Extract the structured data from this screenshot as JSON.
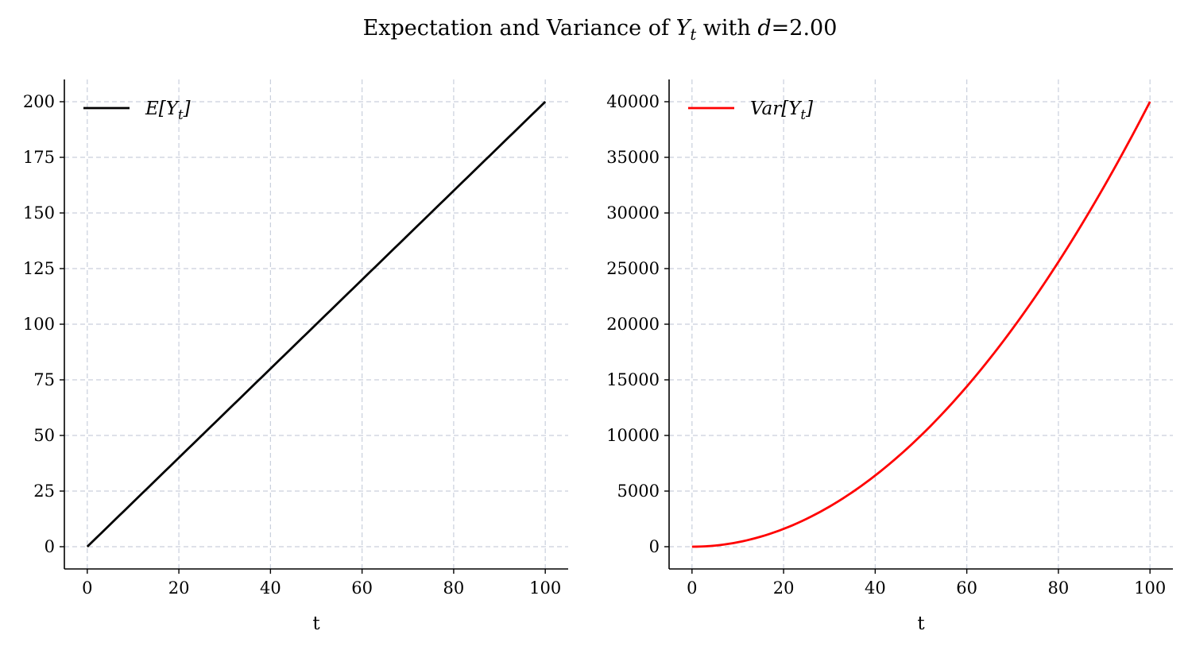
{
  "figure": {
    "title": "Expectation and Variance of Y_t with d=2.00"
  },
  "chart_data": [
    {
      "type": "line",
      "xlabel": "t",
      "ylabel": "",
      "xlim": [
        -5,
        105
      ],
      "ylim": [
        -10,
        210
      ],
      "xticks": [
        0,
        20,
        40,
        60,
        80,
        100
      ],
      "yticks": [
        0,
        25,
        50,
        75,
        100,
        125,
        150,
        175,
        200
      ],
      "grid": true,
      "legend_position": "top-left",
      "series": [
        {
          "name": "E[Y_t]",
          "color": "#000000",
          "formula": "2t",
          "x": [
            0,
            10,
            20,
            30,
            40,
            50,
            60,
            70,
            80,
            90,
            100
          ],
          "values": [
            0,
            20,
            40,
            60,
            80,
            100,
            120,
            140,
            160,
            180,
            200
          ]
        }
      ]
    },
    {
      "type": "line",
      "xlabel": "t",
      "ylabel": "",
      "xlim": [
        -5,
        105
      ],
      "ylim": [
        -2000,
        42000
      ],
      "xticks": [
        0,
        20,
        40,
        60,
        80,
        100
      ],
      "yticks": [
        0,
        5000,
        10000,
        15000,
        20000,
        25000,
        30000,
        35000,
        40000
      ],
      "grid": true,
      "legend_position": "top-left",
      "series": [
        {
          "name": "Var[Y_t]",
          "color": "#ff0000",
          "formula": "4t^2",
          "x": [
            0,
            10,
            20,
            30,
            40,
            50,
            60,
            70,
            80,
            90,
            100
          ],
          "values": [
            0,
            400,
            1600,
            3600,
            6400,
            10000,
            14400,
            19600,
            25600,
            32400,
            40000
          ]
        }
      ]
    }
  ]
}
